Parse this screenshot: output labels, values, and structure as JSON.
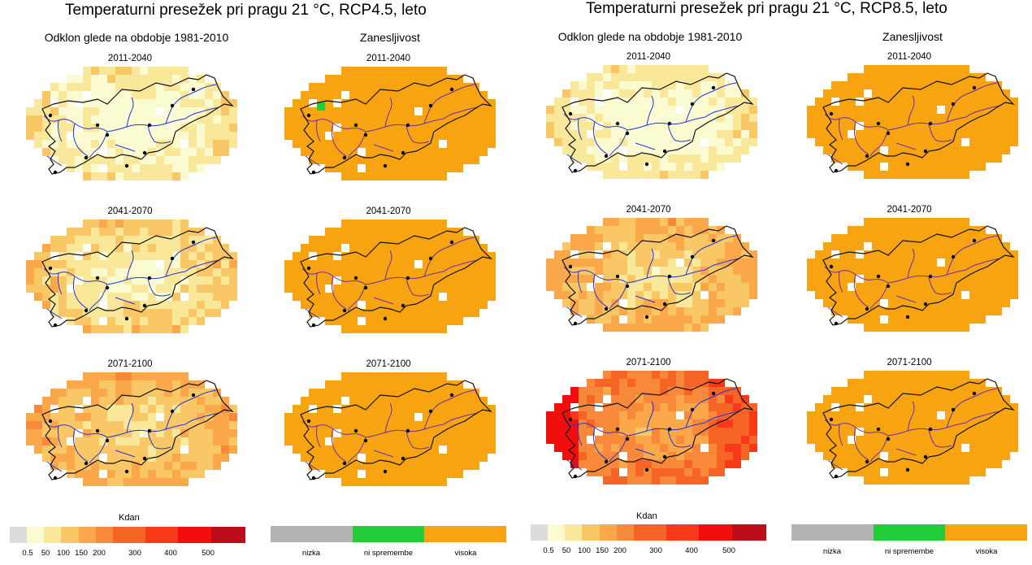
{
  "panels": [
    {
      "title": "Temperaturni presežek pri pragu 21 °C, RCP4.5, leto",
      "deviation_heading": "Odklon glede na obdobje 1981-2010",
      "reliability_heading": "Zanesljivost",
      "periods": [
        "2011-2040",
        "2041-2070",
        "2071-2100"
      ]
    },
    {
      "title": "Temperaturni presežek pri pragu 21 °C, RCP8.5, leto",
      "deviation_heading": "Odklon glede na obdobje 1981-2010",
      "reliability_heading": "Zanesljivost",
      "periods": [
        "2011-2040",
        "2041-2070",
        "2071-2100"
      ]
    }
  ],
  "deviation_legend": {
    "unit": "Kdan",
    "tick_labels": [
      "0.5",
      "50",
      "100",
      "150",
      "200",
      "300",
      "400",
      "500"
    ],
    "colors": [
      "#dcdcdc",
      "#fbfbd2",
      "#f9e79a",
      "#f9c766",
      "#fba84a",
      "#f9893a",
      "#f66426",
      "#f83a1a",
      "#f30e0e",
      "#bd0d1a"
    ]
  },
  "reliability_legend": {
    "labels": [
      "nizka",
      "ni spremembe",
      "visoka"
    ],
    "colors": [
      "#b3b3b3",
      "#21cc38",
      "#f8a310"
    ]
  }
}
